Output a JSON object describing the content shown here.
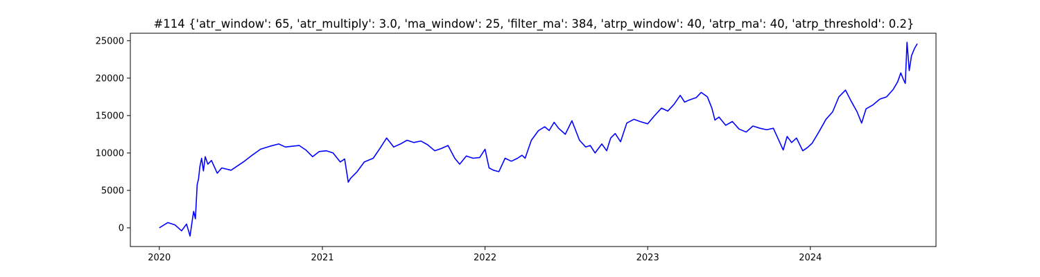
{
  "chart_data": {
    "type": "line",
    "title": "#114 {'atr_window': 65, 'atr_multiply': 3.0, 'ma_window': 25, 'filter_ma': 384, 'atrp_window': 40, 'atrp_ma': 40, 'atrp_threshold': 0.2}",
    "xlabel": "",
    "ylabel": "",
    "x_type": "date",
    "xlim": [
      "2019-10-28",
      "2024-10-09"
    ],
    "ylim": [
      -2500,
      26000
    ],
    "grid": false,
    "legend": "none",
    "x_ticks": [
      "2020-01-01",
      "2021-01-01",
      "2022-01-01",
      "2023-01-01",
      "2024-01-01"
    ],
    "x_tick_labels": [
      "2020",
      "2021",
      "2022",
      "2023",
      "2024"
    ],
    "y_ticks": [
      0,
      5000,
      10000,
      15000,
      20000,
      25000
    ],
    "y_tick_labels": [
      "0",
      "5000",
      "10000",
      "15000",
      "20000",
      "25000"
    ],
    "color": "#0000ff",
    "series": [
      {
        "x": [
          "2020-01-01",
          "2020-01-20",
          "2020-02-05",
          "2020-02-20",
          "2020-03-02",
          "2020-03-06",
          "2020-03-10",
          "2020-03-14",
          "2020-03-18",
          "2020-03-22",
          "2020-03-26",
          "2020-03-29",
          "2020-04-01",
          "2020-04-05",
          "2020-04-09",
          "2020-04-13",
          "2020-04-19",
          "2020-04-27",
          "2020-05-10",
          "2020-05-20",
          "2020-06-10",
          "2020-06-25",
          "2020-07-10",
          "2020-07-25",
          "2020-08-15",
          "2020-09-05",
          "2020-09-25",
          "2020-10-10",
          "2020-10-25",
          "2020-11-10",
          "2020-11-25",
          "2020-12-10",
          "2020-12-25",
          "2021-01-10",
          "2021-01-25",
          "2021-02-10",
          "2021-02-20",
          "2021-02-28",
          "2021-03-05",
          "2021-03-20",
          "2021-04-05",
          "2021-04-25",
          "2021-05-10",
          "2021-05-25",
          "2021-06-10",
          "2021-06-25",
          "2021-07-10",
          "2021-07-25",
          "2021-08-10",
          "2021-08-25",
          "2021-09-10",
          "2021-09-25",
          "2021-10-10",
          "2021-10-25",
          "2021-11-05",
          "2021-11-20",
          "2021-12-05",
          "2021-12-20",
          "2022-01-01",
          "2022-01-10",
          "2022-01-20",
          "2022-02-01",
          "2022-02-15",
          "2022-03-01",
          "2022-03-15",
          "2022-03-25",
          "2022-04-01",
          "2022-04-15",
          "2022-05-01",
          "2022-05-15",
          "2022-05-25",
          "2022-06-05",
          "2022-06-15",
          "2022-06-30",
          "2022-07-15",
          "2022-08-01",
          "2022-08-15",
          "2022-08-25",
          "2022-09-05",
          "2022-09-20",
          "2022-10-01",
          "2022-10-10",
          "2022-10-20",
          "2022-11-01",
          "2022-11-15",
          "2022-12-01",
          "2022-12-15",
          "2023-01-01",
          "2023-01-15",
          "2023-02-01",
          "2023-02-15",
          "2023-03-01",
          "2023-03-15",
          "2023-03-25",
          "2023-04-05",
          "2023-04-20",
          "2023-05-01",
          "2023-05-15",
          "2023-05-25",
          "2023-06-01",
          "2023-06-10",
          "2023-06-25",
          "2023-07-10",
          "2023-07-25",
          "2023-08-10",
          "2023-08-25",
          "2023-09-10",
          "2023-09-25",
          "2023-10-10",
          "2023-10-20",
          "2023-11-01",
          "2023-11-10",
          "2023-11-20",
          "2023-12-01",
          "2023-12-15",
          "2023-12-25",
          "2024-01-05",
          "2024-01-20",
          "2024-02-05",
          "2024-02-20",
          "2024-03-05",
          "2024-03-20",
          "2024-04-01",
          "2024-04-15",
          "2024-04-25",
          "2024-05-05",
          "2024-05-20",
          "2024-06-05",
          "2024-06-20",
          "2024-07-05",
          "2024-07-15",
          "2024-07-22",
          "2024-07-28",
          "2024-08-01",
          "2024-08-05",
          "2024-08-10",
          "2024-08-15",
          "2024-08-22",
          "2024-08-28"
        ],
        "y": [
          0,
          700,
          400,
          -400,
          500,
          -300,
          -1100,
          600,
          2200,
          1200,
          5800,
          6500,
          8200,
          9300,
          7600,
          9500,
          8500,
          9000,
          7300,
          8000,
          7700,
          8300,
          8900,
          9600,
          10500,
          10900,
          11200,
          10800,
          10900,
          11000,
          10400,
          9500,
          10200,
          10300,
          10000,
          8800,
          9200,
          6100,
          6600,
          7500,
          8800,
          9300,
          10600,
          12000,
          10800,
          11200,
          11700,
          11400,
          11600,
          11100,
          10300,
          10600,
          11000,
          9300,
          8500,
          9600,
          9300,
          9400,
          10500,
          8000,
          7700,
          7500,
          9300,
          8900,
          9300,
          9700,
          9300,
          11700,
          13000,
          13500,
          13000,
          14100,
          13300,
          12500,
          14300,
          11700,
          10800,
          11000,
          10000,
          11200,
          10300,
          12000,
          12600,
          11500,
          14000,
          14500,
          14200,
          13900,
          14900,
          16000,
          15600,
          16500,
          17700,
          16800,
          17100,
          17400,
          18100,
          17500,
          16000,
          14400,
          14800,
          13700,
          14200,
          13200,
          12800,
          13600,
          13300,
          13100,
          13300,
          12000,
          10400,
          12200,
          11400,
          12000,
          10300,
          10700,
          11300,
          12800,
          14500,
          15500,
          17500,
          18400,
          17000,
          15500,
          14000,
          15900,
          16400,
          17200,
          17500,
          18500,
          19500,
          20700,
          19800,
          19300,
          24800,
          21000,
          23000,
          24000,
          24600
        ]
      }
    ]
  }
}
